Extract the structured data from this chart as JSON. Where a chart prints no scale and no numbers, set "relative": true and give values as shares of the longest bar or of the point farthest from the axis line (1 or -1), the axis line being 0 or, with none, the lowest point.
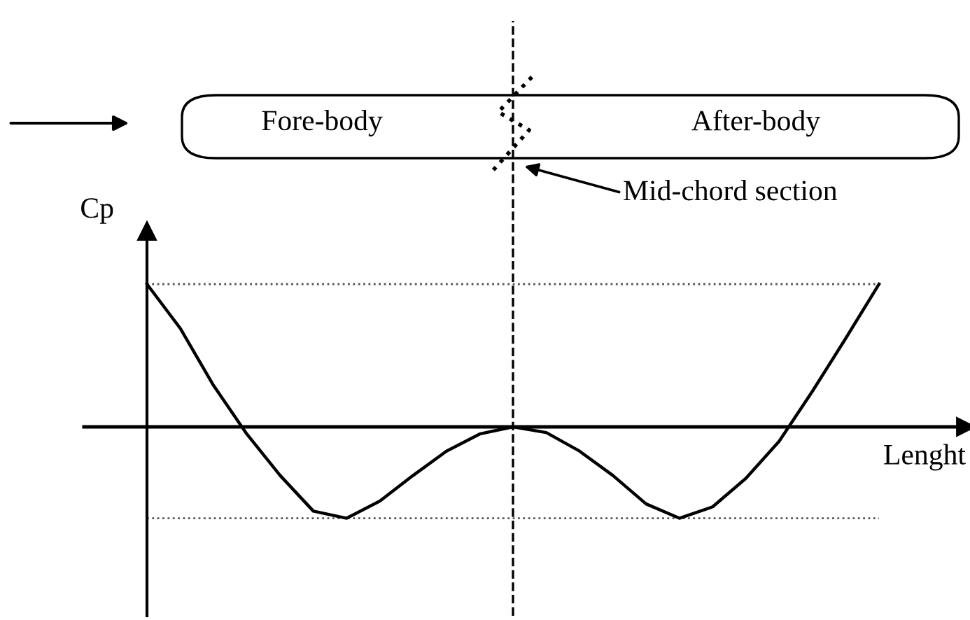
{
  "chart_data": {
    "type": "line",
    "relative": true,
    "xlabel": "Lenght",
    "ylabel": "Cp",
    "color": "#000000",
    "marker": "none",
    "line_style": "solid",
    "categories": [
      null,
      null,
      null,
      null,
      null,
      null,
      null,
      null,
      null,
      null,
      null,
      null,
      null,
      null,
      null,
      null,
      null,
      null,
      null,
      null,
      null,
      null,
      null
    ],
    "values": [
      1.0,
      0.69,
      0.29,
      -0.05,
      -0.34,
      -0.59,
      -0.64,
      -0.52,
      -0.34,
      -0.17,
      -0.05,
      0,
      -0.04,
      -0.17,
      -0.34,
      -0.54,
      -0.64,
      -0.56,
      -0.36,
      -0.1,
      0.25,
      0.62,
      1.0
    ],
    "ref_lines": [
      {
        "axis": "y",
        "value": 1.0,
        "line_style": "dotted",
        "color": "#555555"
      },
      {
        "axis": "y",
        "value": -0.64,
        "line_style": "dotted",
        "color": "#555555"
      }
    ],
    "annotations": [
      "Fore-body",
      "After-body",
      "Mid-chord section"
    ]
  }
}
